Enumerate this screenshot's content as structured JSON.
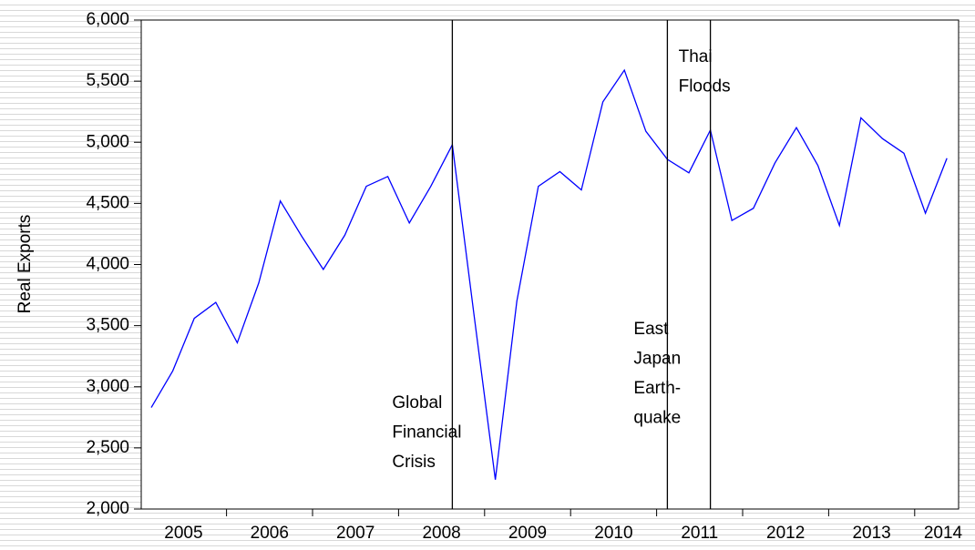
{
  "chart_data": {
    "type": "line",
    "y_label": "Real Exports",
    "x_labels": [
      2005,
      2006,
      2007,
      2008,
      2009,
      2010,
      2011,
      2012,
      2013,
      2014
    ],
    "values": [
      2830,
      3130,
      3560,
      3690,
      3360,
      3850,
      4520,
      4230,
      3960,
      4240,
      4640,
      4720,
      4340,
      4640,
      4980,
      3600,
      2240,
      3700,
      4640,
      4760,
      4610,
      5330,
      5590,
      5090,
      4860,
      4750,
      5100,
      4360,
      4460,
      4830,
      5120,
      4810,
      4320,
      5200,
      5030,
      4910,
      4420,
      4870
    ],
    "color": "#0000ff",
    "ylim": [
      2000,
      6000
    ],
    "yticks": [
      {
        "value": 2000,
        "label": "2,000"
      },
      {
        "value": 2500,
        "label": "2,500"
      },
      {
        "value": 3000,
        "label": "3,000"
      },
      {
        "value": 3500,
        "label": "3,500"
      },
      {
        "value": 4000,
        "label": "4,000"
      },
      {
        "value": 4500,
        "label": "4,500"
      },
      {
        "value": 5000,
        "label": "5,000"
      },
      {
        "value": 5500,
        "label": "5,500"
      },
      {
        "value": 6000,
        "label": "6,000"
      }
    ],
    "events": [
      {
        "category": 14,
        "label": [
          "Global",
          "Financial",
          "Crisis"
        ]
      },
      {
        "category": 24,
        "label": [
          "East",
          "Japan",
          "Earth-",
          "quake"
        ]
      },
      {
        "category": 26,
        "label": [
          "Thai",
          "Floods"
        ]
      }
    ]
  }
}
